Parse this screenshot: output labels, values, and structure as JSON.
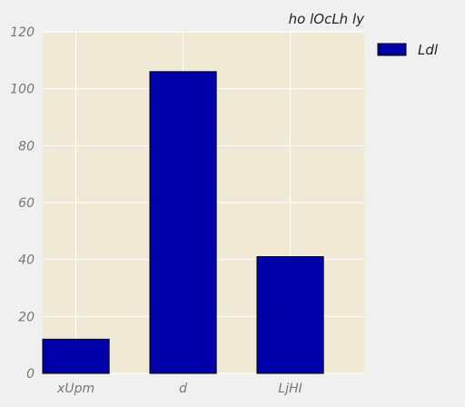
{
  "chart_data": {
    "type": "bar",
    "title": "ho lOcLh ly",
    "categories": [
      "xUpm",
      "d",
      "LjHI"
    ],
    "series": [
      {
        "name": "Ldl",
        "values": [
          12,
          106,
          41
        ]
      }
    ],
    "xlabel": "",
    "ylabel": "",
    "ylim": [
      0,
      120
    ],
    "yticks": [
      0,
      20,
      40,
      60,
      80,
      100,
      120
    ],
    "grid": true,
    "legend_position": "top-right-outside"
  },
  "colors": {
    "bar_fill": "#0000aa",
    "plot_background": "#efe9d6",
    "page_background": "#f0f0f0",
    "grid": "#ffffff"
  }
}
